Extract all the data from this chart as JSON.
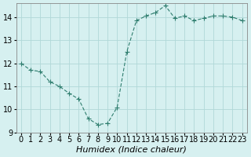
{
  "x": [
    0,
    1,
    2,
    3,
    4,
    5,
    6,
    7,
    8,
    9,
    10,
    11,
    12,
    13,
    14,
    15,
    16,
    17,
    18,
    19,
    20,
    21,
    22,
    23
  ],
  "y": [
    12.0,
    11.7,
    11.65,
    11.2,
    11.0,
    10.7,
    10.45,
    9.6,
    9.35,
    9.4,
    10.1,
    12.5,
    13.85,
    14.05,
    14.2,
    14.5,
    13.95,
    14.05,
    13.85,
    13.95,
    14.05,
    14.05,
    14.0,
    13.85
  ],
  "line_color": "#2e7d6e",
  "marker": "+",
  "bg_color": "#d6f0f0",
  "grid_color": "#b0d8d8",
  "xlabel": "Humidex (Indice chaleur)",
  "ylim": [
    9.0,
    14.6
  ],
  "xlim": [
    -0.5,
    23.5
  ],
  "yticks": [
    9,
    10,
    11,
    12,
    13,
    14
  ],
  "xticks": [
    0,
    1,
    2,
    3,
    4,
    5,
    6,
    7,
    8,
    9,
    10,
    11,
    12,
    13,
    14,
    15,
    16,
    17,
    18,
    19,
    20,
    21,
    22,
    23
  ],
  "title_fontsize": 9,
  "label_fontsize": 8,
  "tick_fontsize": 7
}
